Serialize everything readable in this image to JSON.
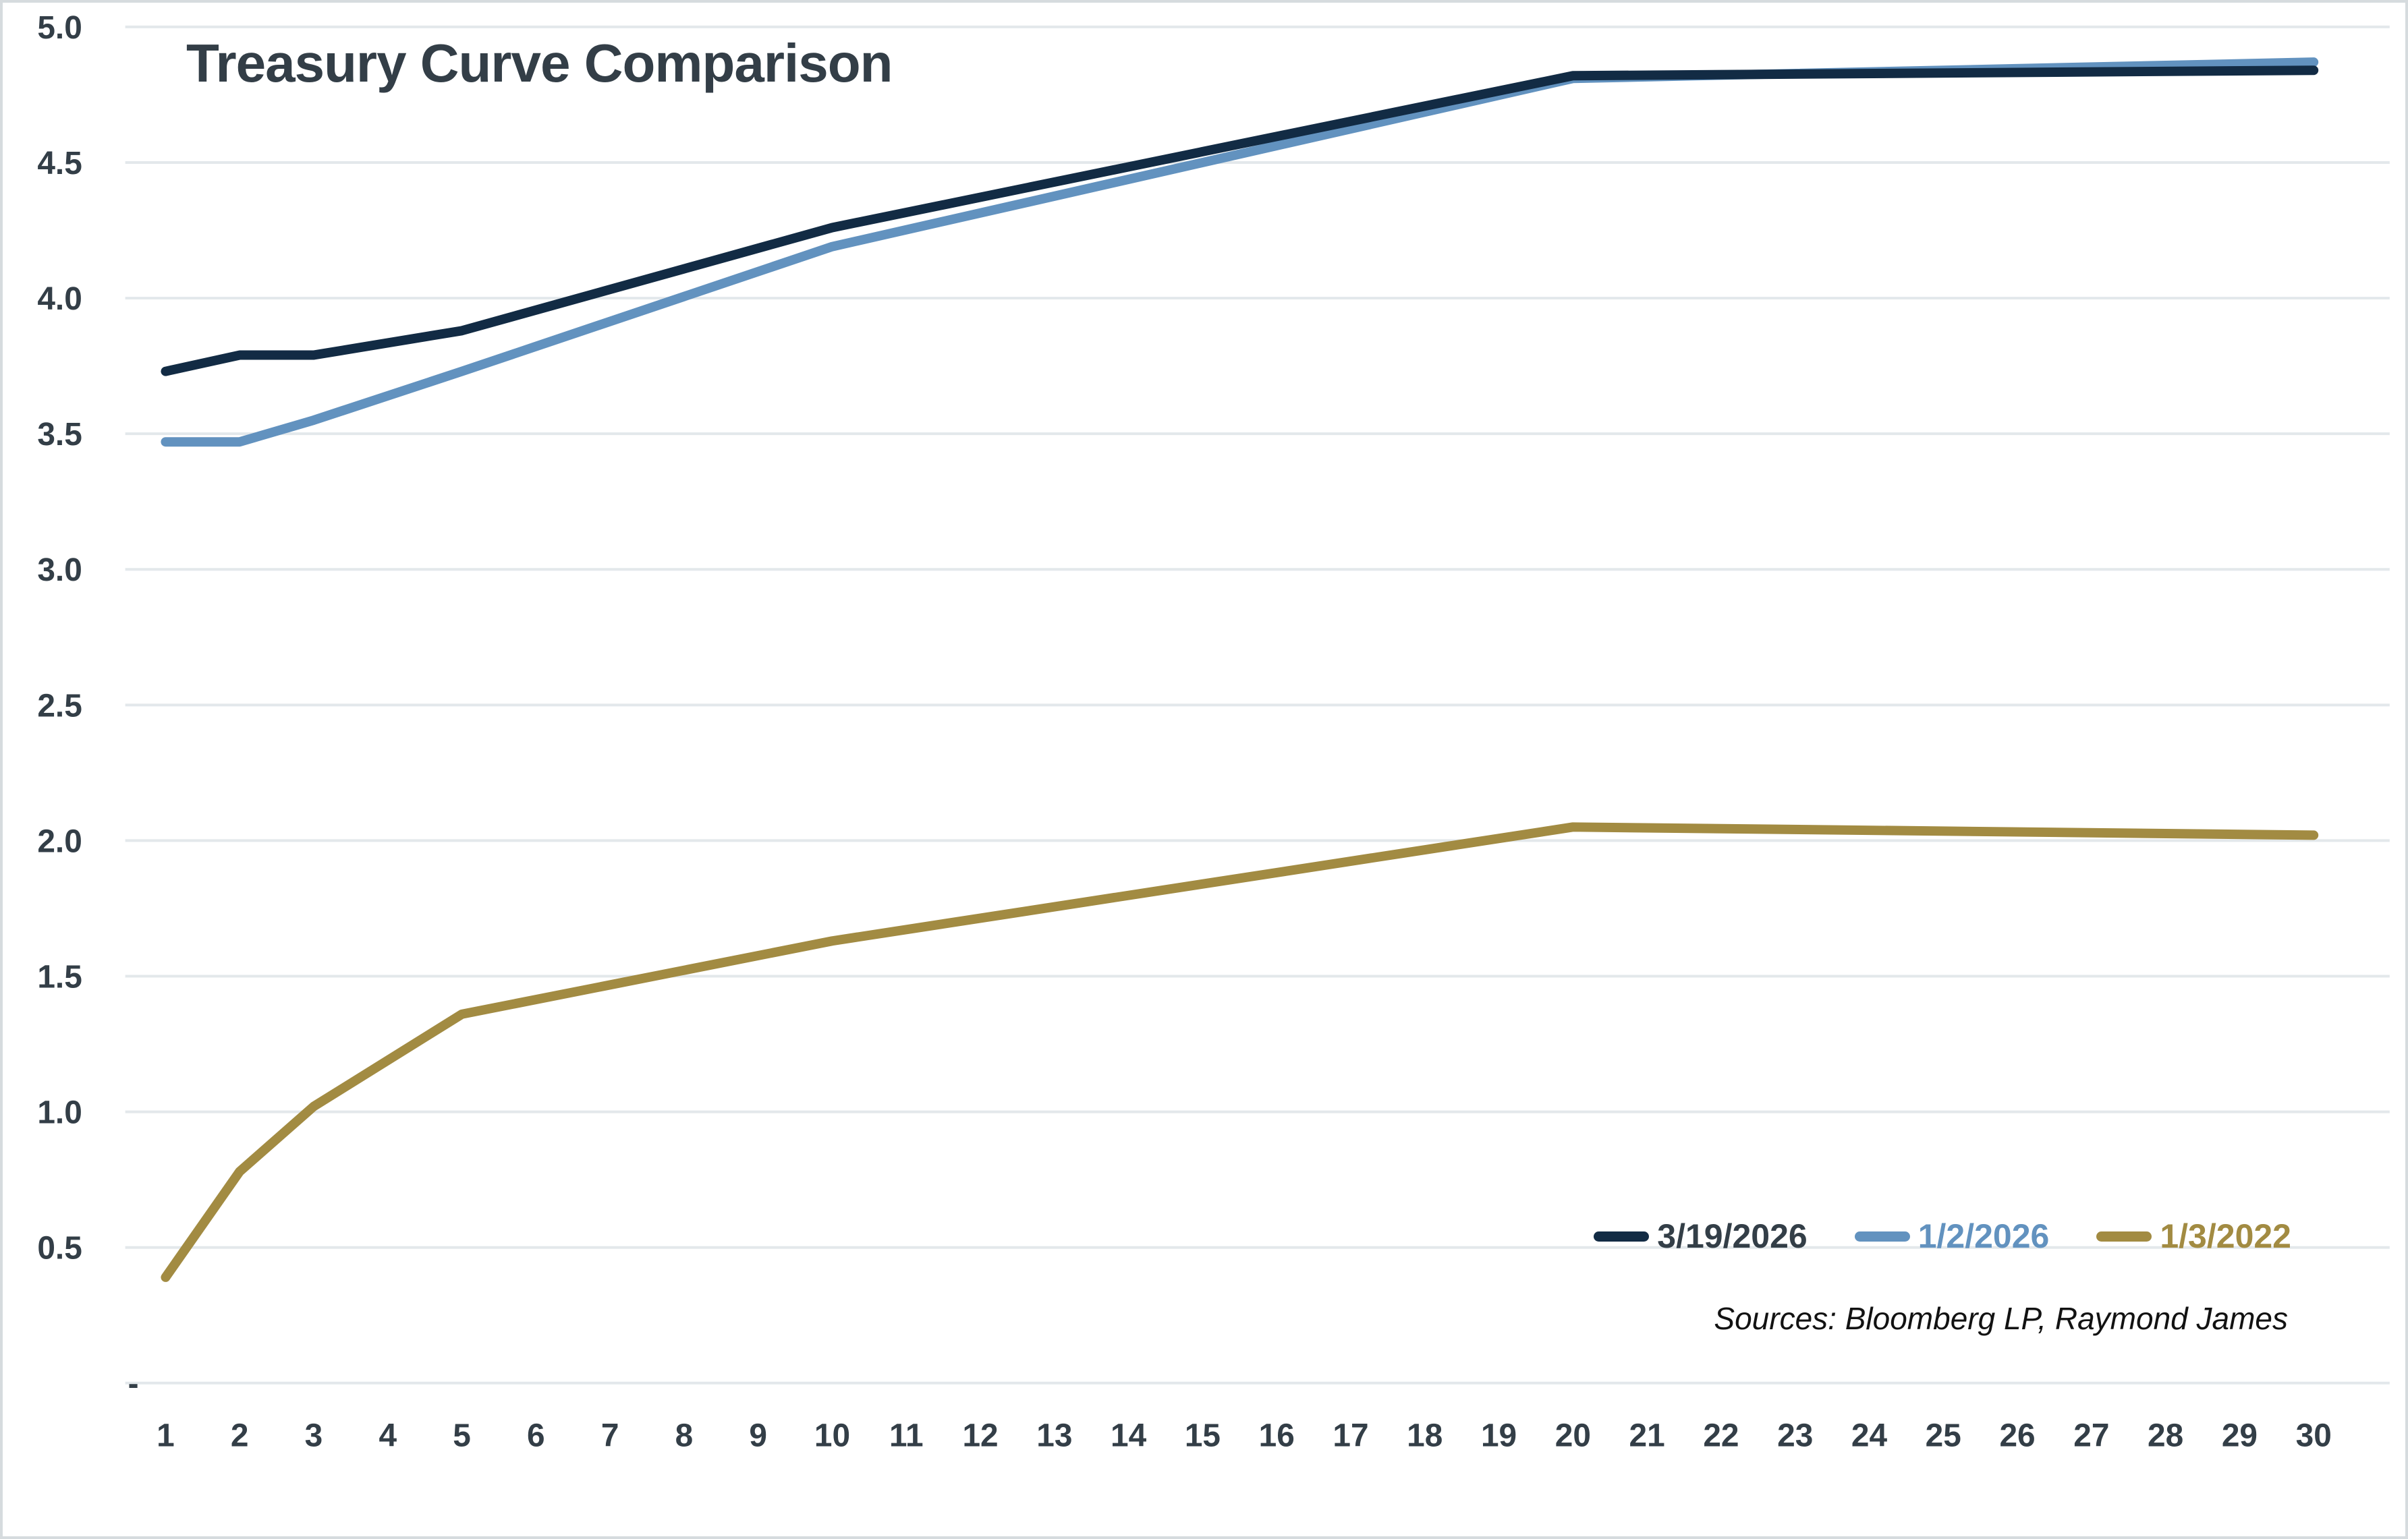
{
  "colors": {
    "background": "#FFFFFF",
    "border": "#D6DBDE",
    "gridline": "#E3E8EB",
    "axis_text": "#333E47",
    "source_text": "#121212"
  },
  "chart_data": {
    "type": "line",
    "title": "Treasury Curve Comparison",
    "source_note": "Sources: Bloomberg LP, Raymond James",
    "xlabel": "",
    "ylabel": "",
    "xlim": [
      1,
      30
    ],
    "ylim": [
      0,
      5.0
    ],
    "grid": true,
    "legend_position": "inside-bottom-right",
    "x_axis_ticks": [
      1,
      2,
      3,
      4,
      5,
      6,
      7,
      8,
      9,
      10,
      11,
      12,
      13,
      14,
      15,
      16,
      17,
      18,
      19,
      20,
      21,
      22,
      23,
      24,
      25,
      26,
      27,
      28,
      29,
      30
    ],
    "y_axis_ticks": [
      {
        "label": "5.0",
        "value": 5.0
      },
      {
        "label": "4.5",
        "value": 4.5
      },
      {
        "label": "4.0",
        "value": 4.0
      },
      {
        "label": "3.5",
        "value": 3.5
      },
      {
        "label": "3.0",
        "value": 3.0
      },
      {
        "label": "2.5",
        "value": 2.5
      },
      {
        "label": "2.0",
        "value": 2.0
      },
      {
        "label": "1.5",
        "value": 1.5
      },
      {
        "label": "1.0",
        "value": 1.0
      },
      {
        "label": "0.5",
        "value": 0.5
      },
      {
        "label": "-",
        "value": 0
      }
    ],
    "maturities_years": [
      1,
      2,
      3,
      5,
      10,
      20,
      30
    ],
    "series": [
      {
        "name": "3/19/2026",
        "color": "#122B44",
        "legend_label_color": "#333E47",
        "x": [
          1,
          2,
          3,
          5,
          10,
          20,
          30
        ],
        "values": [
          3.73,
          3.79,
          3.79,
          3.88,
          4.26,
          4.82,
          4.84
        ]
      },
      {
        "name": "1/2/2026",
        "color": "#6292BF",
        "legend_label_color": "#6292BF",
        "x": [
          1,
          2,
          3,
          5,
          10,
          20,
          30
        ],
        "values": [
          3.47,
          3.47,
          3.55,
          3.73,
          4.19,
          4.81,
          4.87
        ]
      },
      {
        "name": "1/3/2022",
        "color": "#A28B42",
        "legend_label_color": "#A28B42",
        "x": [
          1,
          2,
          3,
          5,
          10,
          20,
          30
        ],
        "values": [
          0.39,
          0.78,
          1.02,
          1.36,
          1.63,
          2.05,
          2.02
        ]
      }
    ]
  }
}
